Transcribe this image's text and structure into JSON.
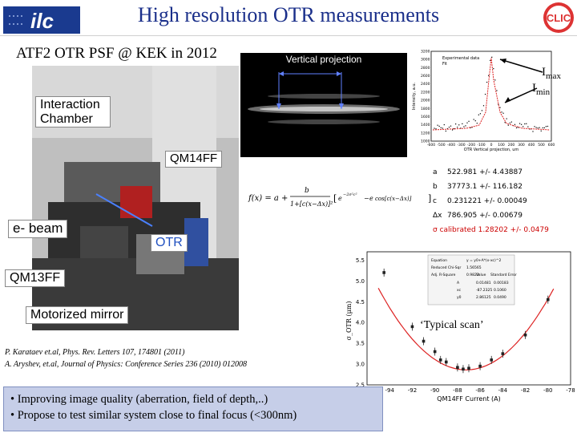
{
  "slide": {
    "title": "High resolution OTR measurements",
    "subtitle": "ATF2 OTR PSF @ KEK in 2012",
    "logos": {
      "left": "ilc-logo",
      "right": "clic-logo"
    }
  },
  "photo_labels": {
    "interaction_chamber": "Interaction\nChamber",
    "qm14ff": "QM14FF",
    "e_beam": "e- beam",
    "otr": "OTR",
    "qm13ff": "QM13FF",
    "motorized_mirror": "Motorized mirror"
  },
  "otr_image": {
    "caption": "Vertical projection"
  },
  "profile_plot": {
    "imax_label": "I",
    "imax_sub": "max",
    "imin_label": "I",
    "imin_sub": "min",
    "legend": [
      "Experimental data",
      "Fit"
    ],
    "xlabel": "OTR Vertical projection, um",
    "ylabel": "Intensity, a.u.",
    "x_ticks": [
      "-600",
      "-500",
      "-400",
      "-300",
      "-200",
      "-100",
      "0",
      "100",
      "200",
      "300",
      "400",
      "500",
      "600"
    ],
    "y_ticks": [
      "1000",
      "1200",
      "1400",
      "1600",
      "1800",
      "2000",
      "2200",
      "2400",
      "2600",
      "2800",
      "3000",
      "3200"
    ]
  },
  "fit_table": {
    "rows": [
      {
        "name": "a",
        "text": "522.981  +/-  4.43887"
      },
      {
        "name": "b",
        "text": "37773.1  +/-  116.182"
      },
      {
        "name": "c",
        "text": "0.231221 +/- 0.00049"
      },
      {
        "name": "dx",
        "text": "786.905 +/- 0.00679"
      },
      {
        "name": "sigma",
        "text": "σ calibrated  1.28202  +/- 0.0479"
      }
    ],
    "labels": [
      "a",
      "b",
      "c",
      "Δx",
      ""
    ]
  },
  "formula": {
    "text": "f(x) = a + b / (1 + [c(x − Δx)]²) [ e^{−2σ²c²} − e^{...} cos[c(x − Δx)] ]"
  },
  "scan_plot": {
    "xlabel": "QM14FF Current (A)",
    "ylabel": "σ_OTR (μm)",
    "x_ticks": [
      "-96",
      "-94",
      "-92",
      "-90",
      "-88",
      "-86",
      "-84",
      "-82",
      "-80",
      "-78"
    ],
    "y_ticks": [
      "2.5",
      "3.0",
      "3.5",
      "4.0",
      "4.5",
      "5.0",
      "5.5"
    ],
    "fit_box": {
      "equation_label": "Equation",
      "equation": "y = y0+A*(x-xc)^2",
      "chi_label": "Reduced Chi-Sqr",
      "chi": "1.56565",
      "r_label": "Adj. R-Square",
      "r": "0.9823",
      "col_value": "Value",
      "col_err": "Standard Error",
      "params": [
        {
          "p": "A",
          "v": "0.01481",
          "e": "0.00183"
        },
        {
          "p": "xc",
          "v": "-87.2325",
          "e": "0.1060"
        },
        {
          "p": "y0",
          "v": "2.86125",
          "e": "0.0490"
        }
      ]
    }
  },
  "chart_data": {
    "type": "scatter",
    "xlabel": "QM14FF Current (A)",
    "ylabel": "σ_OTR (μm)",
    "xlim": [
      -96,
      -78
    ],
    "ylim": [
      2.5,
      5.7
    ],
    "series": [
      {
        "x": [
          -94.5,
          -92,
          -91,
          -90,
          -89.5,
          -89,
          -88,
          -87.5,
          -87,
          -86,
          -85,
          -84,
          -82,
          -80
        ],
        "y": [
          5.2,
          3.9,
          3.55,
          3.3,
          3.1,
          3.05,
          2.92,
          2.88,
          2.9,
          2.95,
          3.1,
          3.25,
          3.7,
          4.55
        ]
      }
    ]
  },
  "typical_scan": "‘Typical scan’",
  "references": [
    "P. Karataev et.al, Phys. Rev. Letters 107, 174801 (2011)",
    "A. Aryshev, et.al, Journal of Physics: Conference Series 236 (2010) 012008"
  ],
  "bullets": [
    "• Improving image quality (aberration, field of depth,..)",
    "• Propose to test similar system  close to final focus (<300nm)"
  ],
  "colors": {
    "title": "#1a2f8a",
    "highlight": "#cc0000",
    "bullet_bg": "#c6cee8",
    "fit_curve": "#dd2222"
  }
}
